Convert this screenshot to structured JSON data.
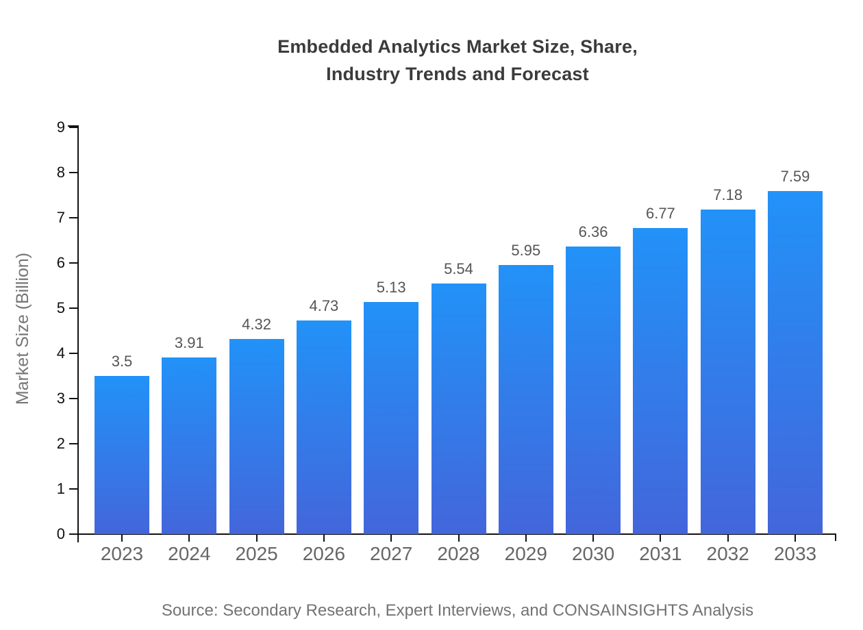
{
  "title": {
    "line1": "Embedded Analytics Market Size, Share,",
    "line2": "Industry Trends and Forecast"
  },
  "source": "Source: Secondary Research, Expert Interviews, and CONSAINSIGHTS Analysis",
  "colors": {
    "background": "#FFFFFF",
    "bar_gradient_top": "#2292F8",
    "bar_gradient_bottom": "#4366DB",
    "axis": "#111111",
    "title_text": "#3B3B3B",
    "y_tick_label": "#111111",
    "x_tick_label": "#666666",
    "value_label": "#555555",
    "axis_title_text": "#767676",
    "source_text": "#737373"
  },
  "chart_data": {
    "type": "bar",
    "title": "Embedded Analytics Market Size, Share, Industry Trends and Forecast",
    "categories": [
      "2023",
      "2024",
      "2025",
      "2026",
      "2027",
      "2028",
      "2029",
      "2030",
      "2031",
      "2032",
      "2033"
    ],
    "values": [
      3.5,
      3.91,
      4.32,
      4.73,
      5.13,
      5.54,
      5.95,
      6.36,
      6.77,
      7.18,
      7.59
    ],
    "value_labels": [
      "3.5",
      "3.91",
      "4.32",
      "4.73",
      "5.13",
      "5.54",
      "5.95",
      "6.36",
      "6.77",
      "7.18",
      "7.59"
    ],
    "xlabel": "",
    "ylabel": "Market Size (Billion)",
    "ylim": [
      0,
      9
    ],
    "yticks": [
      0,
      1,
      2,
      3,
      4,
      5,
      6,
      7,
      8,
      9
    ],
    "grid": false,
    "legend": "none",
    "bar_labels_shown": true
  }
}
